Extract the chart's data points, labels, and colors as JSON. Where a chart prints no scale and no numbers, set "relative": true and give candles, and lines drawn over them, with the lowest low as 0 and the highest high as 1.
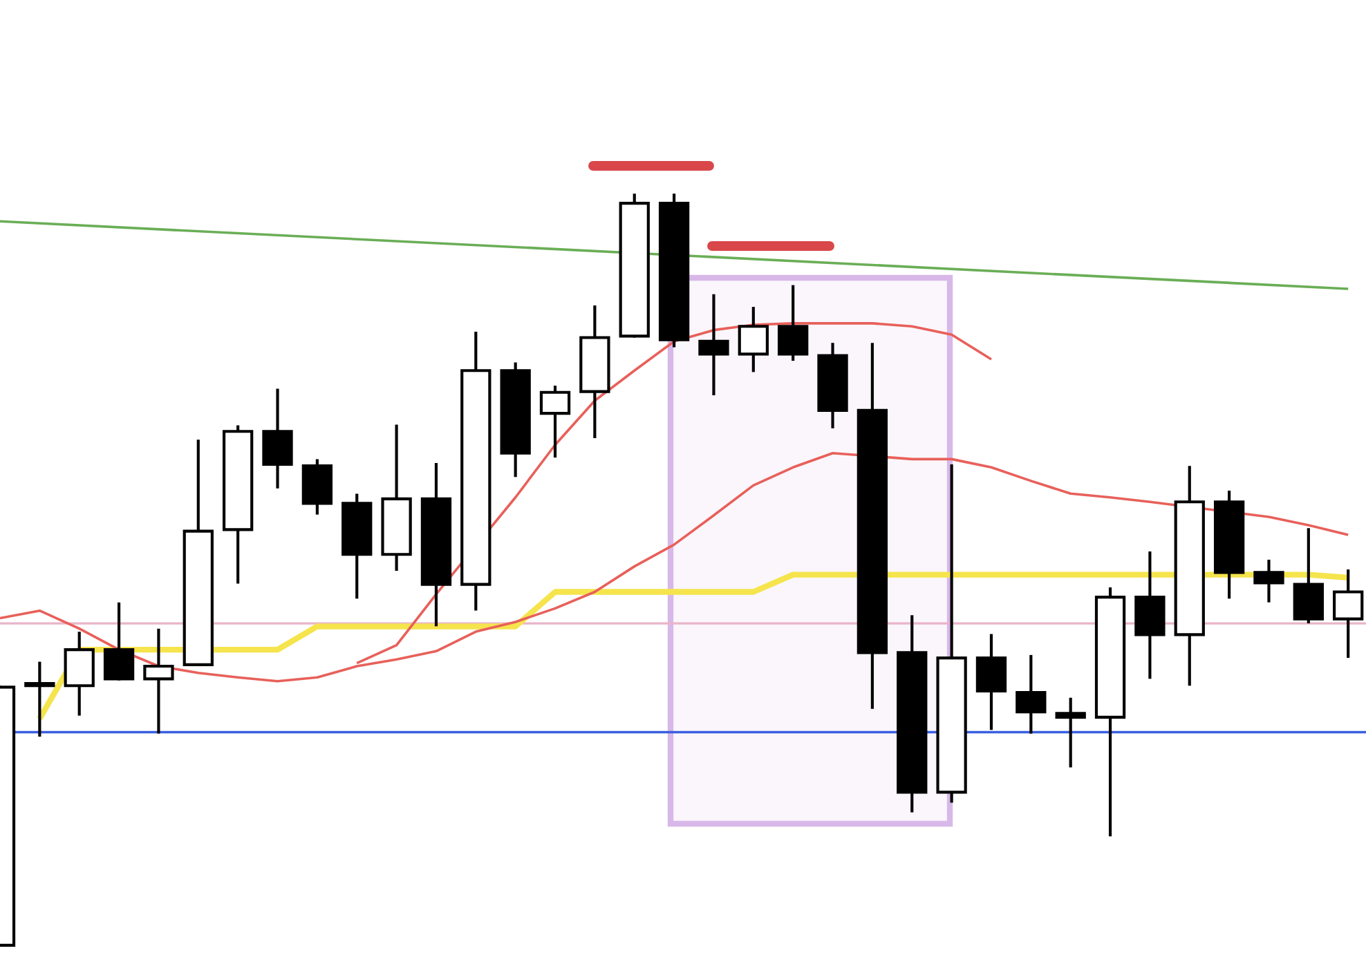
{
  "chart_data": {
    "type": "candlestick",
    "relative": true,
    "categories": [
      null,
      null,
      null,
      null,
      null,
      null,
      null,
      null,
      null,
      null,
      null,
      null,
      null,
      null,
      null,
      null,
      null,
      null,
      null,
      null,
      null,
      null,
      null,
      null,
      null,
      null,
      null,
      null,
      null,
      null,
      null,
      null,
      null,
      null,
      null
    ],
    "ohlc": [
      [
        0,
        0.344,
        0,
        0.344
      ],
      [
        0.346,
        0.376,
        0.28,
        0.348
      ],
      [
        0.346,
        0.416,
        0.308,
        0.394
      ],
      [
        0.394,
        0.455,
        0.355,
        0.355
      ],
      [
        0.355,
        0.42,
        0.284,
        0.372
      ],
      [
        0.374,
        0.672,
        0.374,
        0.552
      ],
      [
        0.554,
        0.691,
        0.484,
        0.685
      ],
      [
        0.685,
        0.74,
        0.611,
        0.641
      ],
      [
        0.639,
        0.646,
        0.576,
        0.589
      ],
      [
        0.589,
        0.6,
        0.464,
        0.521
      ],
      [
        0.521,
        0.692,
        0.501,
        0.595
      ],
      [
        0.595,
        0.641,
        0.427,
        0.481
      ],
      [
        0.481,
        0.816,
        0.448,
        0.766
      ],
      [
        0.766,
        0.775,
        0.626,
        0.656
      ],
      [
        0.709,
        0.744,
        0.652,
        0.737
      ],
      [
        0.738,
        0.851,
        0.678,
        0.81
      ],
      [
        0.812,
        1.0,
        0.812,
        0.989
      ],
      [
        0.989,
        1.0,
        0.799,
        0.807
      ],
      [
        0.805,
        0.866,
        0.735,
        0.788
      ],
      [
        0.788,
        0.849,
        0.766,
        0.825
      ],
      [
        0.825,
        0.878,
        0.781,
        0.788
      ],
      [
        0.786,
        0.801,
        0.691,
        0.713
      ],
      [
        0.713,
        0.801,
        0.317,
        0.39
      ],
      [
        0.39,
        0.438,
        0.179,
        0.204
      ],
      [
        0.204,
        0.639,
        0.192,
        0.383
      ],
      [
        0.383,
        0.413,
        0.289,
        0.339
      ],
      [
        0.337,
        0.385,
        0.284,
        0.311
      ],
      [
        0.309,
        0.328,
        0.239,
        0.304
      ],
      [
        0.304,
        0.475,
        0.147,
        0.464
      ],
      [
        0.464,
        0.523,
        0.357,
        0.414
      ],
      [
        0.414,
        0.637,
        0.348,
        0.591
      ],
      [
        0.591,
        0.604,
        0.464,
        0.497
      ],
      [
        0.497,
        0.512,
        0.459,
        0.483
      ],
      [
        0.481,
        0.554,
        0.431,
        0.435
      ],
      [
        0.435,
        0.499,
        0.385,
        0.471
      ]
    ],
    "series": [
      {
        "type": "line",
        "color": "#f5e44c",
        "values": [
          null,
          0.302,
          0.394,
          0.394,
          0.394,
          null,
          0.394,
          0.394,
          0.425,
          0.425,
          0.425,
          0.425,
          0.425,
          0.425,
          0.471,
          0.471,
          0.471,
          0.471,
          0.471,
          0.471,
          0.494,
          0.494,
          null,
          0.494,
          0.494,
          0.494,
          0.494,
          0.494,
          0.494,
          0.494,
          null,
          0.494,
          null,
          0.494,
          0.49
        ]
      },
      {
        "type": "line",
        "color": "#e8605a",
        "values": [
          0.436,
          0.446,
          0.422,
          0.394,
          0.372,
          0.363,
          0.357,
          0.352,
          0.357,
          0.372,
          0.381,
          0.392,
          0.418,
          0.431,
          0.449,
          0.471,
          0.505,
          0.534,
          0.573,
          0.613,
          0.637,
          0.656,
          null,
          0.648,
          0.648,
          0.637,
          0.619,
          0.602,
          0.597,
          0.591,
          null,
          null,
          0.571,
          0.56,
          0.547
        ]
      },
      {
        "type": "line",
        "color": "#e8605a",
        "values": [
          null,
          null,
          null,
          null,
          null,
          null,
          null,
          null,
          null,
          0.376,
          0.4,
          0.468,
          null,
          0.597,
          0.667,
          0.726,
          0.766,
          0.805,
          0.82,
          0.827,
          0.829,
          0.829,
          0.829,
          0.825,
          0.814,
          0.781,
          null,
          null,
          null,
          null,
          null,
          null,
          null,
          null,
          null
        ]
      },
      {
        "type": "line",
        "color": "#6aae56",
        "values": [
          0.965,
          null,
          null,
          null,
          null,
          null,
          null,
          null,
          null,
          null,
          null,
          null,
          null,
          null,
          null,
          null,
          null,
          null,
          null,
          null,
          null,
          null,
          null,
          null,
          null,
          null,
          null,
          null,
          null,
          null,
          null,
          null,
          null,
          null,
          0.875
        ]
      }
    ],
    "ref_lines": [
      {
        "axis": "y",
        "value": 0.284,
        "color": "#3a5fe0"
      },
      {
        "axis": "y",
        "value": 0.429,
        "color": "#eab4c8"
      }
    ]
  }
}
